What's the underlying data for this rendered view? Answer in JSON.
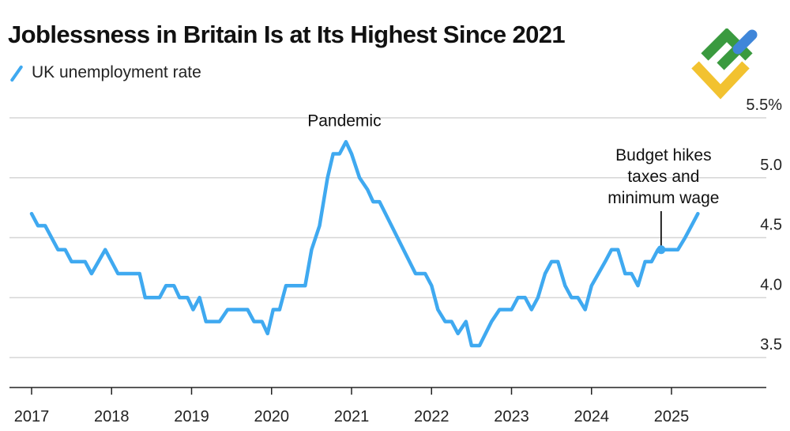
{
  "title": "Joblessness in Britain Is at Its Highest Since 2021",
  "legend": {
    "label": "UK unemployment rate",
    "color": "#3fa9f0"
  },
  "logo": {
    "name": "brand-logo"
  },
  "chart_data": {
    "type": "line",
    "title": "Joblessness in Britain Is at Its Highest Since 2021",
    "xlabel": "",
    "ylabel": "",
    "xlim": [
      2017,
      2026.2
    ],
    "ylim": [
      3.25,
      5.5
    ],
    "y_ticks": [
      {
        "value": 3.5,
        "label": "3.5"
      },
      {
        "value": 4.0,
        "label": "4.0"
      },
      {
        "value": 4.5,
        "label": "4.5"
      },
      {
        "value": 5.0,
        "label": "5.0"
      },
      {
        "value": 5.5,
        "label": "5.5%"
      }
    ],
    "x_ticks": [
      {
        "value": 2017,
        "label": "2017"
      },
      {
        "value": 2018,
        "label": "2018"
      },
      {
        "value": 2019,
        "label": "2019"
      },
      {
        "value": 2020,
        "label": "2020"
      },
      {
        "value": 2021,
        "label": "2021"
      },
      {
        "value": 2022,
        "label": "2022"
      },
      {
        "value": 2023,
        "label": "2023"
      },
      {
        "value": 2024,
        "label": "2024"
      },
      {
        "value": 2025,
        "label": "2025"
      }
    ],
    "grid": true,
    "series": [
      {
        "name": "UK unemployment rate",
        "color": "#3fa9f0",
        "points": [
          [
            2017.0,
            4.7
          ],
          [
            2017.08,
            4.6
          ],
          [
            2017.17,
            4.6
          ],
          [
            2017.33,
            4.4
          ],
          [
            2017.42,
            4.4
          ],
          [
            2017.5,
            4.3
          ],
          [
            2017.67,
            4.3
          ],
          [
            2017.75,
            4.2
          ],
          [
            2017.92,
            4.4
          ],
          [
            2018.08,
            4.2
          ],
          [
            2018.25,
            4.2
          ],
          [
            2018.35,
            4.2
          ],
          [
            2018.42,
            4.0
          ],
          [
            2018.6,
            4.0
          ],
          [
            2018.68,
            4.1
          ],
          [
            2018.78,
            4.1
          ],
          [
            2018.85,
            4.0
          ],
          [
            2018.95,
            4.0
          ],
          [
            2019.02,
            3.9
          ],
          [
            2019.1,
            4.0
          ],
          [
            2019.18,
            3.8
          ],
          [
            2019.35,
            3.8
          ],
          [
            2019.45,
            3.9
          ],
          [
            2019.7,
            3.9
          ],
          [
            2019.78,
            3.8
          ],
          [
            2019.88,
            3.8
          ],
          [
            2019.95,
            3.7
          ],
          [
            2020.02,
            3.9
          ],
          [
            2020.1,
            3.9
          ],
          [
            2020.18,
            4.1
          ],
          [
            2020.42,
            4.1
          ],
          [
            2020.5,
            4.4
          ],
          [
            2020.6,
            4.6
          ],
          [
            2020.7,
            5.0
          ],
          [
            2020.77,
            5.2
          ],
          [
            2020.85,
            5.2
          ],
          [
            2020.93,
            5.3
          ],
          [
            2021.0,
            5.2
          ],
          [
            2021.1,
            5.0
          ],
          [
            2021.2,
            4.9
          ],
          [
            2021.27,
            4.8
          ],
          [
            2021.35,
            4.8
          ],
          [
            2021.5,
            4.6
          ],
          [
            2021.65,
            4.4
          ],
          [
            2021.8,
            4.2
          ],
          [
            2021.92,
            4.2
          ],
          [
            2022.0,
            4.1
          ],
          [
            2022.08,
            3.9
          ],
          [
            2022.17,
            3.8
          ],
          [
            2022.25,
            3.8
          ],
          [
            2022.33,
            3.7
          ],
          [
            2022.43,
            3.8
          ],
          [
            2022.5,
            3.6
          ],
          [
            2022.6,
            3.6
          ],
          [
            2022.75,
            3.8
          ],
          [
            2022.85,
            3.9
          ],
          [
            2023.0,
            3.9
          ],
          [
            2023.08,
            4.0
          ],
          [
            2023.17,
            4.0
          ],
          [
            2023.25,
            3.9
          ],
          [
            2023.33,
            4.0
          ],
          [
            2023.42,
            4.2
          ],
          [
            2023.5,
            4.3
          ],
          [
            2023.58,
            4.3
          ],
          [
            2023.67,
            4.1
          ],
          [
            2023.75,
            4.0
          ],
          [
            2023.83,
            4.0
          ],
          [
            2023.92,
            3.9
          ],
          [
            2024.0,
            4.1
          ],
          [
            2024.17,
            4.3
          ],
          [
            2024.25,
            4.4
          ],
          [
            2024.33,
            4.4
          ],
          [
            2024.42,
            4.2
          ],
          [
            2024.5,
            4.2
          ],
          [
            2024.58,
            4.1
          ],
          [
            2024.67,
            4.3
          ],
          [
            2024.75,
            4.3
          ],
          [
            2024.83,
            4.4
          ],
          [
            2024.92,
            4.4
          ],
          [
            2025.0,
            4.4
          ],
          [
            2025.08,
            4.4
          ],
          [
            2025.17,
            4.5
          ],
          [
            2025.25,
            4.6
          ],
          [
            2025.33,
            4.7
          ]
        ]
      }
    ],
    "annotations": [
      {
        "text": "Pandemic",
        "x": 2020.93,
        "y": 5.3
      },
      {
        "text": [
          "Budget hikes",
          "taxes and",
          "minimum wage"
        ],
        "x": 2024.9,
        "y": 4.4
      }
    ]
  }
}
